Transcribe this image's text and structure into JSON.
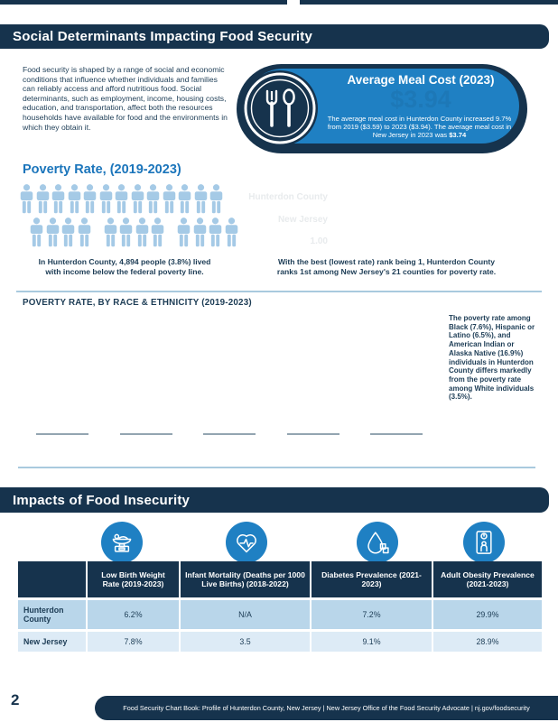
{
  "colors": {
    "navy": "#16334d",
    "accent_blue": "#1f80c3",
    "person_blue": "#a5cae6",
    "heading_blue": "#1b75bb",
    "table_row1": "#b9d6ea",
    "table_row2": "#ddebf6"
  },
  "header": {
    "title": "Social Determinants Impacting Food Security"
  },
  "intro": "Food security is shaped by a range of social and economic conditions that influence whether individuals and families can reliably access and afford nutritious food. Social determinants, such as employment, income, housing costs, education, and transportation, affect both the resources households have available for food and the environments in which they obtain it.",
  "meal_cost": {
    "title": "Average Meal Cost (2023)",
    "ghost_value": "$3.94",
    "body_prefix": "The average meal cost in Hunterdon County increased 9.7% from 2019 ($3.59) to 2023 ($3.94). The average meal cost in New Jersey in 2023 was ",
    "body_bold": "$3.74"
  },
  "poverty": {
    "heading": "Poverty Rate, (2019-2023)",
    "pictogram": {
      "rows": [
        [
          13
        ],
        [
          4,
          4,
          4
        ]
      ]
    },
    "caption_line1": "In Hunterdon County, 4,894 people (3.8%) lived",
    "caption_line2": "with income below the federal poverty line.",
    "ghost_lines": [
      "Hunterdon County",
      "New Jersey",
      "1.00"
    ],
    "rank_caption_line1": "With the best (lowest rate) rank being 1, Hunterdon County",
    "rank_caption_line2": "ranks 1st among New Jersey's 21 counties for poverty rate."
  },
  "race_section": {
    "heading": "POVERTY RATE, BY RACE & ETHNICITY (2019-2023)",
    "note": "The poverty rate among Black (7.6%), Hispanic or Latino (6.5%), and American Indian or Alaska Native (16.9%) individuals in Hunterdon County differs markedly from the poverty rate among White individuals (3.5%).",
    "baseline_count": 5
  },
  "impacts": {
    "title": "Impacts of Food Insecurity",
    "table": {
      "columns": [
        "",
        "Low Birth Weight Rate (2019-2023)",
        "Infant Mortality (Deaths per 1000 Live Births) (2018-2022)",
        "Diabetes Prevalence (2021-2023)",
        "Adult Obesity Prevalence (2021-2023)"
      ],
      "rows": [
        {
          "label": "Hunterdon County",
          "values": [
            "6.2%",
            "N/A",
            "7.2%",
            "29.9%"
          ]
        },
        {
          "label": "New Jersey",
          "values": [
            "7.8%",
            "3.5",
            "9.1%",
            "28.9%"
          ]
        }
      ]
    }
  },
  "page": {
    "number": "2",
    "footer": "Food Security Chart Book: Profile of Hunterdon County, New Jersey  |  New Jersey Office of the Food Security Advocate  |  nj.gov/foodsecurity"
  }
}
